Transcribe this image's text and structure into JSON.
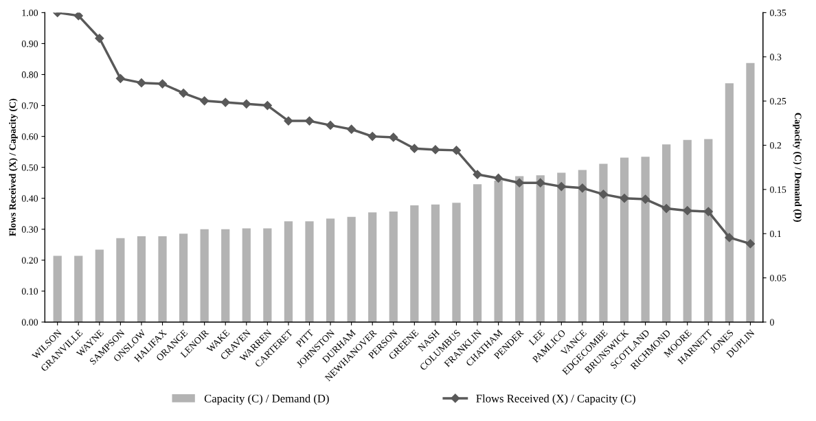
{
  "chart_data": {
    "type": "bar",
    "categories": [
      "WILSON",
      "GRANVILLE",
      "WAYNE",
      "SAMPSON",
      "ONSLOW",
      "HALIFAX",
      "ORANGE",
      "LENOIR",
      "WAKE",
      "CRAVEN",
      "WARREN",
      "CARTERET",
      "PITT",
      "JOHNSTON",
      "DURHAM",
      "NEWHANOVER",
      "PERSON",
      "GREENE",
      "NASH",
      "COLUMBUS",
      "FRANKLIN",
      "CHATHAM",
      "PENDER",
      "LEE",
      "PAMLICO",
      "VANCE",
      "EDGECOMBE",
      "BRUNSWICK",
      "SCOTLAND",
      "RICHMOND",
      "MOORE",
      "HARNETT",
      "JONES",
      "DUPLIN"
    ],
    "ylabel": "Flows Received (X) / Capacity (C)",
    "y2label": "Capacity (C) / Demand (D)",
    "series": [
      {
        "name": "Capacity (C) / Demand (D)",
        "axis": "y2",
        "color": "#b3b3b3",
        "values": [
          0.075,
          0.075,
          0.082,
          0.095,
          0.097,
          0.097,
          0.1,
          0.105,
          0.105,
          0.106,
          0.106,
          0.114,
          0.114,
          0.117,
          0.119,
          0.124,
          0.125,
          0.132,
          0.133,
          0.135,
          0.156,
          0.16,
          0.165,
          0.166,
          0.169,
          0.172,
          0.179,
          0.186,
          0.187,
          0.201,
          0.206,
          0.207,
          0.27,
          0.293
        ]
      },
      {
        "name": "Flows Received (X) / Capacity (C)",
        "type": "line",
        "axis": "y",
        "color": "#595959",
        "marker": "diamond",
        "values": [
          1.0,
          0.99,
          0.917,
          0.787,
          0.773,
          0.77,
          0.74,
          0.715,
          0.71,
          0.705,
          0.7,
          0.65,
          0.65,
          0.636,
          0.623,
          0.6,
          0.597,
          0.561,
          0.557,
          0.555,
          0.477,
          0.465,
          0.45,
          0.45,
          0.438,
          0.433,
          0.413,
          0.4,
          0.397,
          0.367,
          0.36,
          0.357,
          0.273,
          0.253
        ]
      }
    ],
    "ylim": [
      0,
      1.0
    ],
    "yticks": [
      {
        "value": 0,
        "label": "0.00"
      },
      {
        "value": 0.1,
        "label": "0.10"
      },
      {
        "value": 0.2,
        "label": "0.20"
      },
      {
        "value": 0.3,
        "label": "0.30"
      },
      {
        "value": 0.4,
        "label": "0.40"
      },
      {
        "value": 0.5,
        "label": "0.50"
      },
      {
        "value": 0.6,
        "label": "0.60"
      },
      {
        "value": 0.7,
        "label": "0.70"
      },
      {
        "value": 0.8,
        "label": "0.80"
      },
      {
        "value": 0.9,
        "label": "0.90"
      },
      {
        "value": 1.0,
        "label": "1.00"
      }
    ],
    "y2lim": [
      0,
      0.35
    ],
    "y2ticks": [
      0,
      0.05,
      0.1,
      0.15,
      0.2,
      0.25,
      0.3,
      0.35
    ],
    "grid": false,
    "legend": "bottom",
    "line_style": "solid"
  }
}
